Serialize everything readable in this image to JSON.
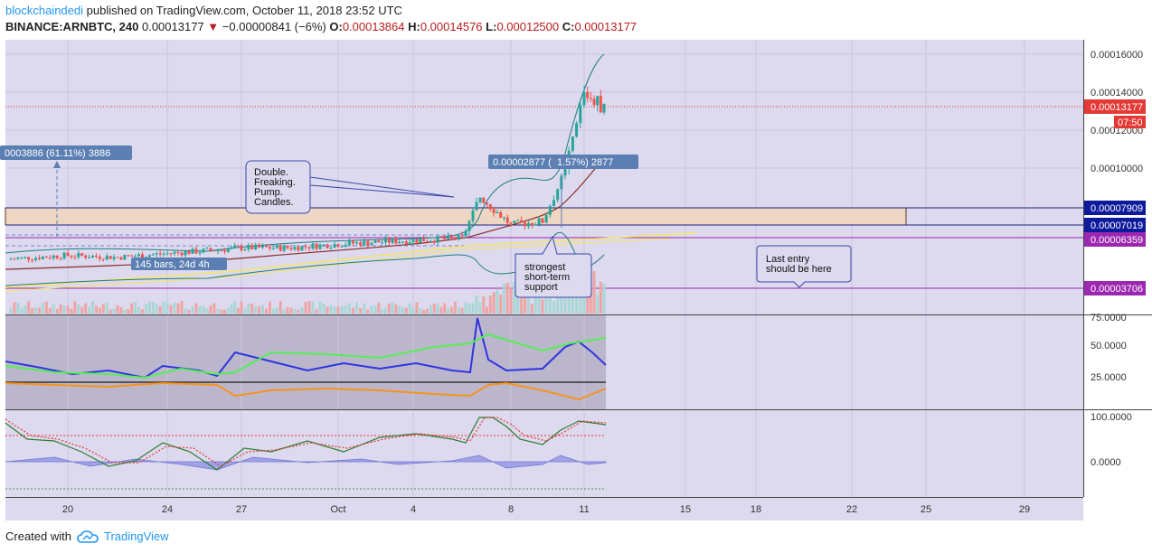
{
  "header": {
    "author": "blockchaindedi",
    "published_text": "published on TradingView.com, October 11, 2018 23:52 UTC",
    "symbol": "BINANCE:ARNBTC, 240",
    "last_price": "0.00013177",
    "change": "−0.00000841 (−6%)",
    "o_label": "O:",
    "o_value": "0.00013864",
    "h_label": "H:",
    "h_value": "0.00014576",
    "l_label": "L:",
    "l_value": "0.00012500",
    "c_label": "C:",
    "c_value": "0.00013177"
  },
  "footer": {
    "created_with": "Created with",
    "brand": "TradingView"
  },
  "icons": {
    "change_down": "triangle-down-icon",
    "logo": "tradingview-cloud-icon"
  },
  "colors": {
    "bg_panel": "#ddd9ee",
    "bull": "#26a69a",
    "bear": "#ef5350",
    "axis_highlight": "#0d1a9c",
    "last_price": "#e53935",
    "support_line": "#9c27b0"
  },
  "price_axis": {
    "ticks": [
      "0.00016000",
      "0.00014000",
      "0.00012000",
      "0.00010000"
    ],
    "last_price_label": "0.00013177",
    "countdown": "07:50",
    "levels": [
      "0.00007909",
      "0.00007019",
      "0.00006359",
      "0.00003706"
    ]
  },
  "indicator_axis_1": {
    "ticks": [
      "75.0000",
      "50.0000",
      "25.0000"
    ]
  },
  "indicator_axis_2": {
    "ticks": [
      "100.0000",
      "0.0000"
    ]
  },
  "time_axis": [
    "20",
    "24",
    "27",
    "Oct",
    "4",
    "8",
    "11",
    "15",
    "18",
    "22",
    "25",
    "29"
  ],
  "annotations": {
    "measure_left": "0003886 (61.11%) 3886",
    "measure_right_a": "0.00002877 (",
    "measure_right_b": "1.57%) 2877",
    "range_label": "145 bars, 24d 4h",
    "callout_pump": [
      "Double.",
      "Freaking.",
      "Pump.",
      "Candles."
    ],
    "callout_support": [
      "strongest",
      "short-term",
      "support"
    ],
    "callout_entry": [
      "Last entry",
      "should be here"
    ]
  },
  "chart_data": {
    "type": "candlestick",
    "symbol": "BINANCE:ARNBTC",
    "interval": "240",
    "x_ticks": [
      "20",
      "24",
      "27",
      "Oct",
      "4",
      "8",
      "11",
      "15",
      "18",
      "22",
      "25",
      "29"
    ],
    "ylim": [
      3e-05,
      0.000165
    ],
    "y_ticks": [
      0.00016,
      0.00014,
      0.00012,
      0.0001
    ],
    "ohlc_last": {
      "open": 0.00013864,
      "high": 0.00014576,
      "low": 0.000125,
      "close": 0.00013177
    },
    "close_path": [
      {
        "x": "18",
        "y": 5.2e-05
      },
      {
        "x": "20",
        "y": 5.4e-05
      },
      {
        "x": "22",
        "y": 5.3e-05
      },
      {
        "x": "24",
        "y": 5.5e-05
      },
      {
        "x": "26",
        "y": 5.7e-05
      },
      {
        "x": "27",
        "y": 5.8e-05
      },
      {
        "x": "29",
        "y": 5.8e-05
      },
      {
        "x": "Oct",
        "y": 6e-05
      },
      {
        "x": "2",
        "y": 6.1e-05
      },
      {
        "x": "4",
        "y": 6.2e-05
      },
      {
        "x": "6",
        "y": 6.3e-05
      },
      {
        "x": "7",
        "y": 8.5e-05
      },
      {
        "x": "8",
        "y": 7e-05
      },
      {
        "x": "9",
        "y": 7.2e-05
      },
      {
        "x": "10",
        "y": 9.8e-05
      },
      {
        "x": "11",
        "y": 0.00014
      },
      {
        "x": "11.5",
        "y": 0.00013177
      }
    ],
    "horizontal_levels": [
      7.909e-05,
      7.019e-05,
      6.359e-05,
      3.706e-05
    ],
    "oscillator_1": {
      "y_ticks": [
        75,
        50,
        25
      ],
      "series": [
        "pink/green line",
        "blue line",
        "orange line"
      ]
    },
    "oscillator_2": {
      "y_ticks": [
        100,
        0
      ]
    }
  }
}
